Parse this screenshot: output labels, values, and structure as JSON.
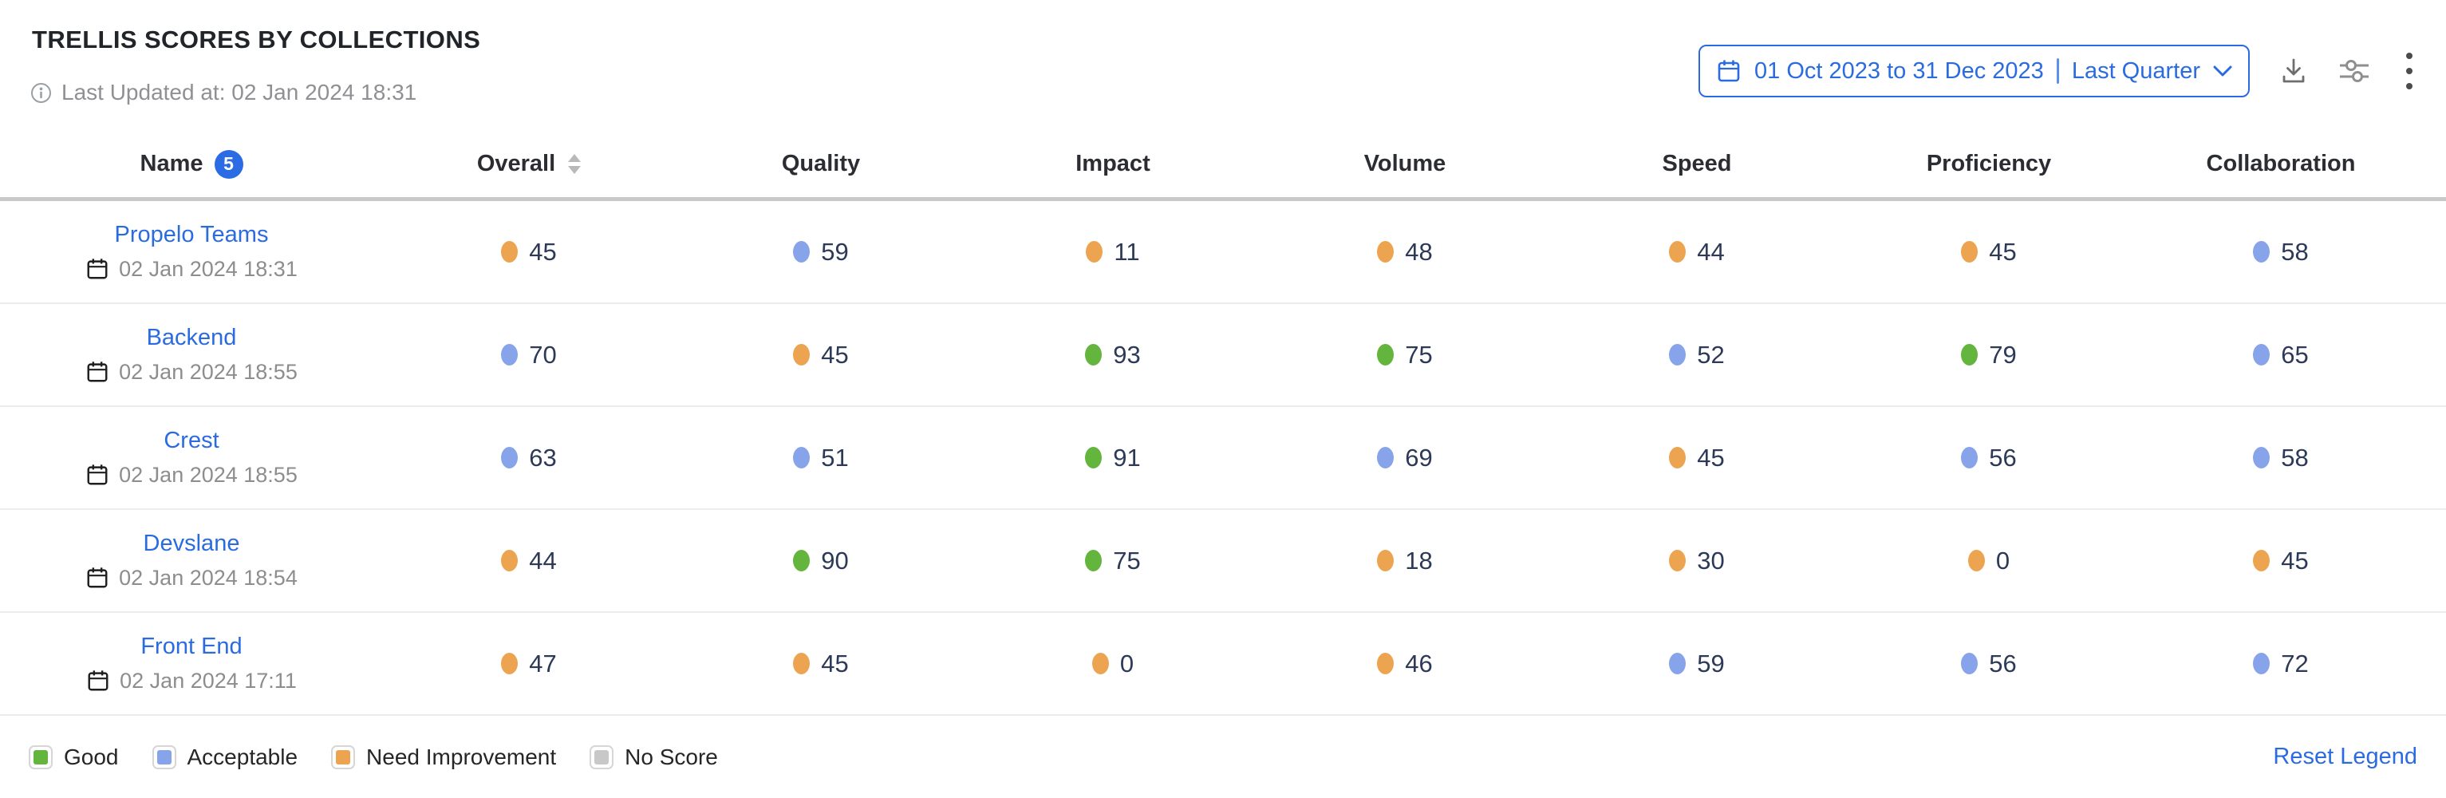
{
  "header": {
    "title": "TRELLIS SCORES BY COLLECTIONS",
    "last_updated": "Last Updated at: 02 Jan 2024 18:31"
  },
  "controls": {
    "date_range": "01 Oct 2023 to 31 Dec 2023",
    "date_preset": "Last Quarter",
    "icons": [
      "calendar-icon",
      "chevron-down-icon",
      "download-icon",
      "sliders-icon",
      "kebab-menu-icon"
    ]
  },
  "colors": {
    "accent_blue": "#2b6be0",
    "good": "#63b53d",
    "acceptable": "#87a3e9",
    "need_improvement": "#eca450",
    "no_score": "#c8c8c8",
    "score_text": "#2d3a57"
  },
  "table": {
    "columns": [
      {
        "label": "Name",
        "badge": "5",
        "sortable": false
      },
      {
        "label": "Overall",
        "badge": null,
        "sortable": true
      },
      {
        "label": "Quality",
        "badge": null,
        "sortable": false
      },
      {
        "label": "Impact",
        "badge": null,
        "sortable": false
      },
      {
        "label": "Volume",
        "badge": null,
        "sortable": false
      },
      {
        "label": "Speed",
        "badge": null,
        "sortable": false
      },
      {
        "label": "Proficiency",
        "badge": null,
        "sortable": false
      },
      {
        "label": "Collaboration",
        "badge": null,
        "sortable": false
      }
    ],
    "rows": [
      {
        "name": "Propelo Teams",
        "updated": "02 Jan 2024 18:31",
        "scores": [
          {
            "value": 45,
            "status": "need_improvement"
          },
          {
            "value": 59,
            "status": "acceptable"
          },
          {
            "value": 11,
            "status": "need_improvement"
          },
          {
            "value": 48,
            "status": "need_improvement"
          },
          {
            "value": 44,
            "status": "need_improvement"
          },
          {
            "value": 45,
            "status": "need_improvement"
          },
          {
            "value": 58,
            "status": "acceptable"
          }
        ]
      },
      {
        "name": "Backend",
        "updated": "02 Jan 2024 18:55",
        "scores": [
          {
            "value": 70,
            "status": "acceptable"
          },
          {
            "value": 45,
            "status": "need_improvement"
          },
          {
            "value": 93,
            "status": "good"
          },
          {
            "value": 75,
            "status": "good"
          },
          {
            "value": 52,
            "status": "acceptable"
          },
          {
            "value": 79,
            "status": "good"
          },
          {
            "value": 65,
            "status": "acceptable"
          }
        ]
      },
      {
        "name": "Crest",
        "updated": "02 Jan 2024 18:55",
        "scores": [
          {
            "value": 63,
            "status": "acceptable"
          },
          {
            "value": 51,
            "status": "acceptable"
          },
          {
            "value": 91,
            "status": "good"
          },
          {
            "value": 69,
            "status": "acceptable"
          },
          {
            "value": 45,
            "status": "need_improvement"
          },
          {
            "value": 56,
            "status": "acceptable"
          },
          {
            "value": 58,
            "status": "acceptable"
          }
        ]
      },
      {
        "name": "Devslane",
        "updated": "02 Jan 2024 18:54",
        "scores": [
          {
            "value": 44,
            "status": "need_improvement"
          },
          {
            "value": 90,
            "status": "good"
          },
          {
            "value": 75,
            "status": "good"
          },
          {
            "value": 18,
            "status": "need_improvement"
          },
          {
            "value": 30,
            "status": "need_improvement"
          },
          {
            "value": 0,
            "status": "need_improvement"
          },
          {
            "value": 45,
            "status": "need_improvement"
          }
        ]
      },
      {
        "name": "Front End",
        "updated": "02 Jan 2024 17:11",
        "scores": [
          {
            "value": 47,
            "status": "need_improvement"
          },
          {
            "value": 45,
            "status": "need_improvement"
          },
          {
            "value": 0,
            "status": "need_improvement"
          },
          {
            "value": 46,
            "status": "need_improvement"
          },
          {
            "value": 59,
            "status": "acceptable"
          },
          {
            "value": 56,
            "status": "acceptable"
          },
          {
            "value": 72,
            "status": "acceptable"
          }
        ]
      }
    ]
  },
  "legend": {
    "items": [
      {
        "label": "Good",
        "status": "good"
      },
      {
        "label": "Acceptable",
        "status": "acceptable"
      },
      {
        "label": "Need Improvement",
        "status": "need_improvement"
      },
      {
        "label": "No Score",
        "status": "no_score"
      }
    ],
    "reset_label": "Reset Legend"
  }
}
